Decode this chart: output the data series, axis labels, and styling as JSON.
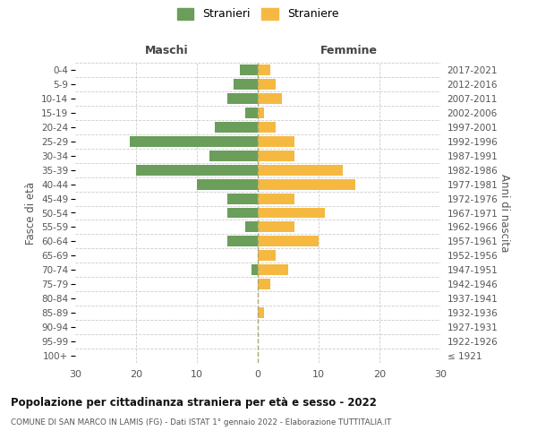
{
  "age_groups": [
    "100+",
    "95-99",
    "90-94",
    "85-89",
    "80-84",
    "75-79",
    "70-74",
    "65-69",
    "60-64",
    "55-59",
    "50-54",
    "45-49",
    "40-44",
    "35-39",
    "30-34",
    "25-29",
    "20-24",
    "15-19",
    "10-14",
    "5-9",
    "0-4"
  ],
  "birth_years": [
    "≤ 1921",
    "1922-1926",
    "1927-1931",
    "1932-1936",
    "1937-1941",
    "1942-1946",
    "1947-1951",
    "1952-1956",
    "1957-1961",
    "1962-1966",
    "1967-1971",
    "1972-1976",
    "1977-1981",
    "1982-1986",
    "1987-1991",
    "1992-1996",
    "1997-2001",
    "2002-2006",
    "2007-2011",
    "2012-2016",
    "2017-2021"
  ],
  "males": [
    0,
    0,
    0,
    0,
    0,
    0,
    1,
    0,
    5,
    2,
    5,
    5,
    10,
    20,
    8,
    21,
    7,
    2,
    5,
    4,
    3
  ],
  "females": [
    0,
    0,
    0,
    1,
    0,
    2,
    5,
    3,
    10,
    6,
    11,
    6,
    16,
    14,
    6,
    6,
    3,
    1,
    4,
    3,
    2
  ],
  "male_color": "#6a9e5a",
  "female_color": "#f5b942",
  "male_label": "Stranieri",
  "female_label": "Straniere",
  "title": "Popolazione per cittadinanza straniera per età e sesso - 2022",
  "subtitle": "COMUNE DI SAN MARCO IN LAMIS (FG) - Dati ISTAT 1° gennaio 2022 - Elaborazione TUTTITALIA.IT",
  "xlabel_left": "Maschi",
  "xlabel_right": "Femmine",
  "ylabel_left": "Fasce di età",
  "ylabel_right": "Anni di nascita",
  "xlim": 30,
  "background_color": "#ffffff",
  "grid_color": "#cccccc",
  "bar_height": 0.75
}
